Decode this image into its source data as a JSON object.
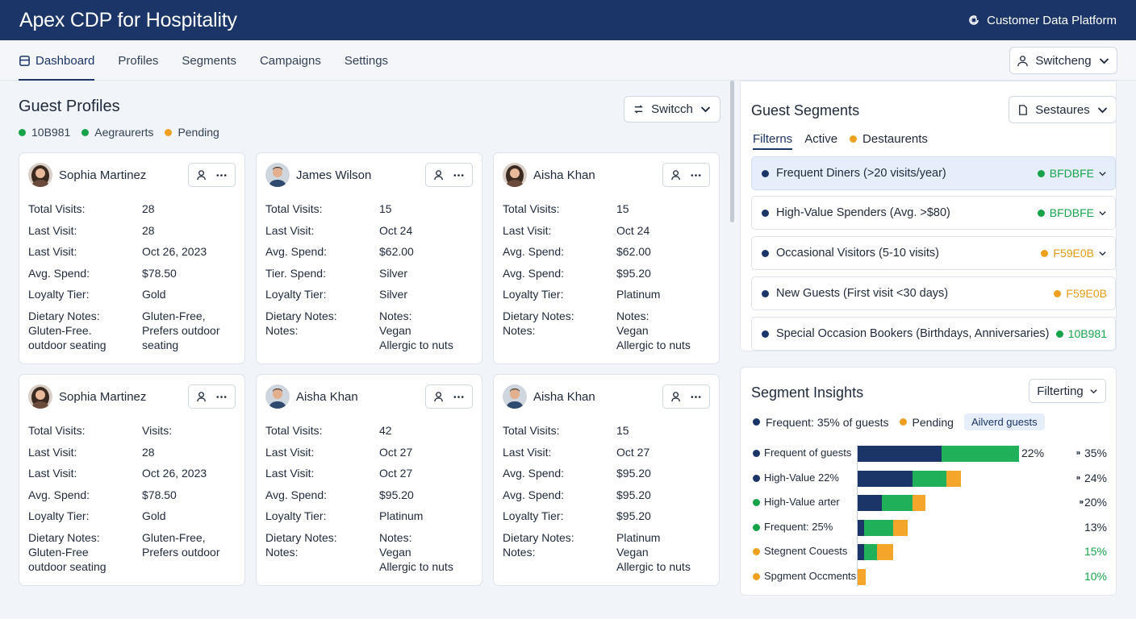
{
  "header": {
    "app_title": "Apex CDP for Hospitality",
    "platform_label": "Customer Data Platform"
  },
  "nav": {
    "tabs": [
      {
        "label": "Dashboard",
        "active": true
      },
      {
        "label": "Profiles"
      },
      {
        "label": "Segments"
      },
      {
        "label": "Campaigns"
      },
      {
        "label": "Settings"
      }
    ],
    "user_switch_label": "Switcheng"
  },
  "guest_profiles": {
    "title": "Guest Profiles",
    "legend": [
      {
        "label": "10B981",
        "color": "#16a34a"
      },
      {
        "label": "Aegraurerts",
        "color": "#16a34a"
      },
      {
        "label": "Pending",
        "color": "#f0a020"
      }
    ],
    "switch_label": "Switcch",
    "cards": [
      {
        "name": "Sophia Martinez",
        "avatar": "female",
        "rows": [
          {
            "label": "Total Visits:",
            "value": "28"
          },
          {
            "label": "Last Visit:",
            "value": "28"
          },
          {
            "label": "Last Visit:",
            "value": "Oct 26, 2023"
          },
          {
            "label": "Avg. Spend:",
            "value": "$78.50"
          },
          {
            "label": "Loyalty Tier:",
            "value": "Gold"
          }
        ],
        "notes_label": "Dietary Notes:\nGluten-Free.\noutdoor seating",
        "notes_value": "Gluten-Free,\nPrefers outdoor\nseating"
      },
      {
        "name": "James Wilson",
        "avatar": "male",
        "rows": [
          {
            "label": "Total Visits:",
            "value": "15"
          },
          {
            "label": "Last Visit:",
            "value": "Oct 24"
          },
          {
            "label": "Avg. Spend:",
            "value": "$62.00"
          },
          {
            "label": "Tier. Spend:",
            "value": "Silver"
          },
          {
            "label": "Loyalty Tier:",
            "value": "Silver"
          }
        ],
        "notes_label": "Dietary Notes:\nNotes:",
        "notes_value": "Notes:\nVegan\nAllergic to nuts"
      },
      {
        "name": "Aisha Khan",
        "avatar": "female",
        "rows": [
          {
            "label": "Total Visits:",
            "value": "15"
          },
          {
            "label": "Last Visit:",
            "value": "Oct 24"
          },
          {
            "label": "Avg. Spend:",
            "value": "$62.00"
          },
          {
            "label": "Avg. Spend:",
            "value": "$95.20"
          },
          {
            "label": "Loyalty Tier:",
            "value": "Platinum"
          }
        ],
        "notes_label": "Dietary Notes:\nNotes:",
        "notes_value": "Notes:\nVegan\nAllergic to nuts"
      },
      {
        "name": "Sophia Martinez",
        "avatar": "female",
        "rows": [
          {
            "label": "Total Visits:",
            "value": "Visits:"
          },
          {
            "label": "Last Visit:",
            "value": "28"
          },
          {
            "label": "Last Visit:",
            "value": "Oct 26, 2023"
          },
          {
            "label": "Avg. Spend:",
            "value": "$78.50"
          },
          {
            "label": "Loyalty Tier:",
            "value": "Gold"
          }
        ],
        "notes_label": "Dietary Notes:\nGluten-Free\noutdoor seating",
        "notes_value": "Gluten-Free,\nPrefers outdoor"
      },
      {
        "name": "Aisha Khan",
        "avatar": "male",
        "rows": [
          {
            "label": "Total Visits:",
            "value": "42"
          },
          {
            "label": "Last Visit:",
            "value": "Oct 27"
          },
          {
            "label": "Last Visit:",
            "value": "Oct 27"
          },
          {
            "label": "Avg. Spend:",
            "value": "$95.20"
          },
          {
            "label": "Loyalty Tier:",
            "value": "Platinum"
          }
        ],
        "notes_label": "Dietary Notes:\nNotes:",
        "notes_value": "Notes:\nVegan\nAllergic to nuts"
      },
      {
        "name": "Aisha Khan",
        "avatar": "male",
        "rows": [
          {
            "label": "Total Visits:",
            "value": "15"
          },
          {
            "label": "Last Visit:",
            "value": "Oct 27"
          },
          {
            "label": "Avg. Spend:",
            "value": "$95.20"
          },
          {
            "label": "Avg. Spend:",
            "value": "$95.20"
          },
          {
            "label": "Loyalty Tier:",
            "value": "$95.20"
          }
        ],
        "notes_label": "Dietary Notes:\nNotes:",
        "notes_value": "Platinum\nVegan\nAllergic to nuts"
      }
    ]
  },
  "guest_segments": {
    "title": "Guest Segments",
    "button_label": "Sestaures",
    "filters": [
      {
        "label": "Filterns",
        "active": true
      },
      {
        "label": "Active"
      },
      {
        "label": "Destaurents",
        "dot": "#f0a020"
      }
    ],
    "items": [
      {
        "label": "Frequent Diners (>20 visits/year)",
        "code": "BFDBFE",
        "code_color": "green",
        "dropdown": true,
        "selected": true
      },
      {
        "label": "High-Value Spenders (Avg. >$80)",
        "code": "BFDBFE",
        "code_color": "green",
        "dropdown": true
      },
      {
        "label": "Occasional Visitors (5-10 visits)",
        "code": "F59E0B",
        "code_color": "orange",
        "dropdown": true
      },
      {
        "label": "New Guests (First visit <30 days)",
        "code": "F59E0B",
        "code_color": "orange",
        "dropdown": false
      },
      {
        "label": "Special Occasion Bookers (Birthdays, Anniversaries)",
        "code": "10B981",
        "code_color": "green",
        "dropdown": false
      }
    ]
  },
  "segment_insights": {
    "title": "Segment Insights",
    "filter_label": "Filterting",
    "legend": [
      {
        "label": "Frequent: 35% of guests",
        "color": "#1b3568"
      },
      {
        "label": "Pending",
        "color": "#f0a020"
      }
    ],
    "chip_label": "Ailverd guests",
    "colors": {
      "navy": "#1b3568",
      "green": "#21b05a",
      "orange": "#f3a62a"
    },
    "rows": [
      {
        "label": "Frequent of guests",
        "dot": "#1b3568",
        "navy": 0.52,
        "green": 0.48,
        "orange": 0,
        "pct": "22%",
        "value": "⁍ 35%",
        "value_green": false
      },
      {
        "label": "High-Value 22%",
        "dot": "#1b3568",
        "navy": 0.34,
        "green": 0.21,
        "orange": 0.09,
        "pct": "",
        "value": "⁍ 24%",
        "value_green": false
      },
      {
        "label": "High-Value arter",
        "dot": "#16a34a",
        "navy": 0.15,
        "green": 0.19,
        "orange": 0.08,
        "pct": "",
        "value": "⁍20%",
        "value_green": false
      },
      {
        "label": "Frequent: 25%",
        "dot": "#16a34a",
        "navy": 0.04,
        "green": 0.18,
        "orange": 0.09,
        "pct": "",
        "value": "13%",
        "value_green": false
      },
      {
        "label": "Stegnent Couests",
        "dot": "#f0a020",
        "navy": 0.04,
        "green": 0.08,
        "orange": 0.1,
        "pct": "",
        "value": "15%",
        "value_green": true
      },
      {
        "label": "Spgment Occments",
        "dot": "#f0a020",
        "navy": 0,
        "green": 0,
        "orange": 0.05,
        "pct": "",
        "value": "10%",
        "value_green": true
      }
    ]
  }
}
